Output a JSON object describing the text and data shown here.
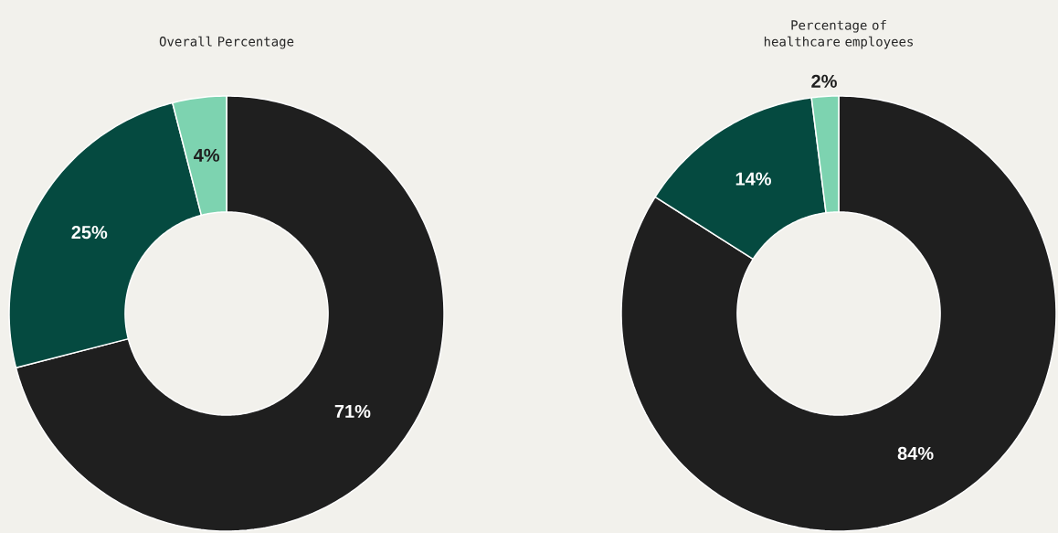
{
  "chart_data": [
    {
      "type": "donut",
      "title": "Overall Percentage",
      "categories": [
        null,
        null,
        null
      ],
      "values": [
        71,
        25,
        4
      ],
      "value_labels": [
        "71%",
        "25%",
        "4%"
      ],
      "colors": [
        "#1f1f1f",
        "#054a40",
        "#7dd3b0"
      ]
    },
    {
      "type": "donut",
      "title": "Percentage of healthcare employees",
      "categories": [
        null,
        null,
        null
      ],
      "values": [
        84,
        14,
        2
      ],
      "value_labels": [
        "84%",
        "14%",
        "2%"
      ],
      "colors": [
        "#1f1f1f",
        "#054a40",
        "#7dd3b0"
      ]
    }
  ]
}
